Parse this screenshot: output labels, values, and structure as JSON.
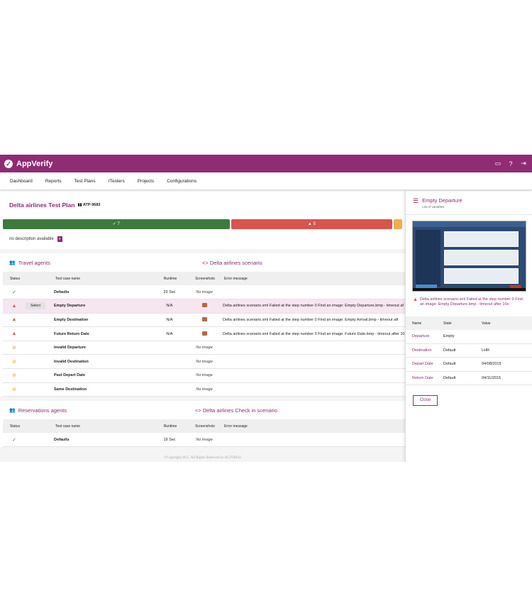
{
  "app": {
    "title": "AppVerify"
  },
  "nav": [
    "Dashboard",
    "Reports",
    "Test Plans",
    "rTesters",
    "Projects",
    "Configurations"
  ],
  "plan": {
    "title": "Delta airlines Test Plan",
    "id": "ATP-9683",
    "passed": "7",
    "failed": "5",
    "description": "no description available"
  },
  "columns": {
    "status": "Status",
    "name": "Test case name",
    "runtime": "Runtime",
    "screenshots": "Screenshots",
    "error": "Error message"
  },
  "sections": [
    {
      "group": "Travel agents",
      "scenario": "Delta airlines scenario",
      "rows": [
        {
          "status": "passed",
          "select": "",
          "name": "Defaults",
          "runtime": "23 Sec",
          "screenshot": "No image",
          "error": ""
        },
        {
          "status": "failed",
          "select": "Select",
          "name": "Empty Departure",
          "runtime": "N/A",
          "screenshot": "camera",
          "error": "Delta airlines scenario.xml Failed at the step number 0 Find an image: Empty Departure.bmp - timeout af"
        },
        {
          "status": "failed",
          "select": "",
          "name": "Empty Destination",
          "runtime": "N/A",
          "screenshot": "camera",
          "error": "Delta airlines scenario.xml Failed at the step number 0 Find an image: Empty Arrival.bmp - timeout aft"
        },
        {
          "status": "failed",
          "select": "",
          "name": "Future Return Date",
          "runtime": "N/A",
          "screenshot": "camera",
          "error": "Delta airlines scenario.xml Failed at the step number 0 Find an image: Future Date.bmp - timeout after 10"
        },
        {
          "status": "skipped",
          "select": "",
          "name": "Invalid Departure",
          "runtime": "",
          "screenshot": "No image",
          "error": ""
        },
        {
          "status": "skipped",
          "select": "",
          "name": "Invalid Destination",
          "runtime": "",
          "screenshot": "No image",
          "error": ""
        },
        {
          "status": "skipped",
          "select": "",
          "name": "Past Depart Date",
          "runtime": "",
          "screenshot": "No image",
          "error": ""
        },
        {
          "status": "skipped",
          "select": "",
          "name": "Same Destination",
          "runtime": "",
          "screenshot": "No image",
          "error": ""
        }
      ]
    },
    {
      "group": "Reservations agents",
      "scenario": "Delta airlines Check in scenario",
      "rows": [
        {
          "status": "passed",
          "select": "",
          "name": "Defaults",
          "runtime": "19 Sec",
          "screenshot": "No image",
          "error": ""
        }
      ]
    }
  ],
  "footer": "©Copyright 2015. All Rights Reserved by AUTOMAI",
  "panel": {
    "title": "Empty Departure",
    "subtitle": "List of variables",
    "error": "Delta airlines scenario.xml Failed at the step number 0 Find an image: Empty Departure.bmp - timeout after 10s",
    "columns": {
      "name": "Name",
      "state": "State",
      "value": "Value"
    },
    "variables": [
      {
        "name": "Departure",
        "state": "Empty",
        "value": ""
      },
      {
        "name": "Destination",
        "state": "Default",
        "value": "LHR"
      },
      {
        "name": "Depart Date",
        "state": "Default",
        "value": "04/08/2015"
      },
      {
        "name": "Return Date",
        "state": "Default",
        "value": "04/11/2015"
      }
    ],
    "close_label": "Close"
  },
  "colors": {
    "brand": "#8f2c72",
    "passed": "#3c7a3f",
    "failed": "#d9534f",
    "skipped": "#f0ad4e"
  },
  "icons": {
    "passed": "check-icon",
    "failed": "warning-icon",
    "skipped": "no-entry-icon",
    "screenshot": "camera-icon"
  }
}
